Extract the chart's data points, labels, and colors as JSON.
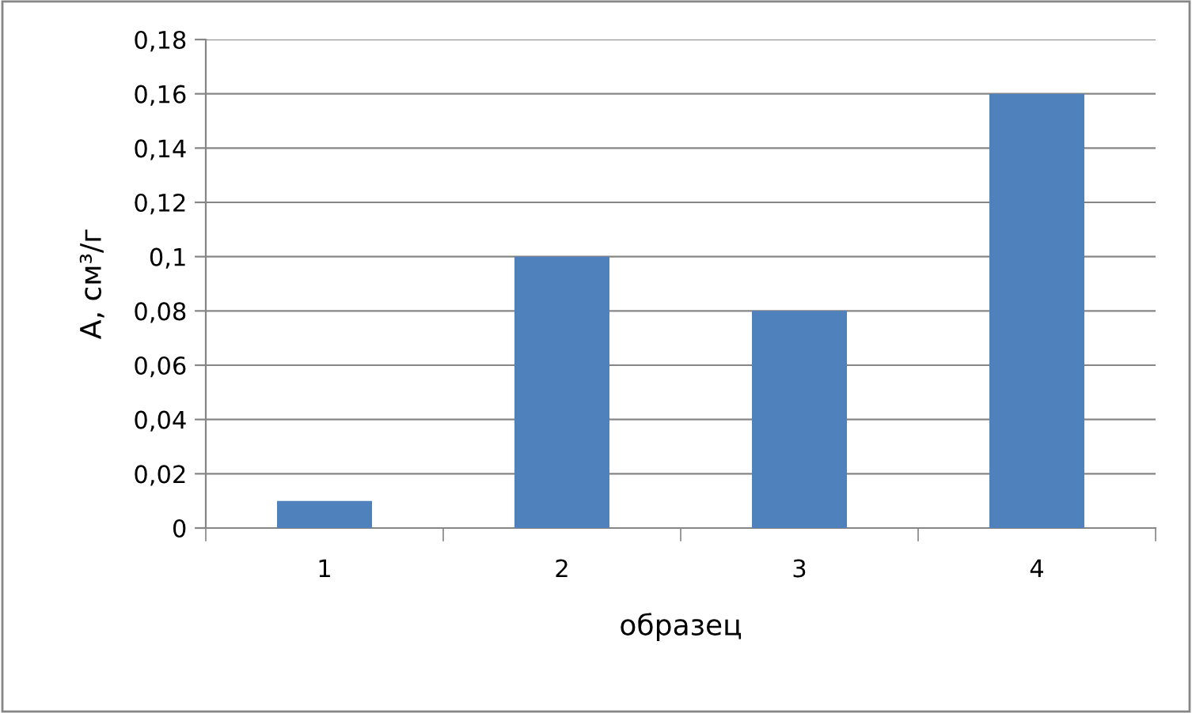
{
  "chart_data": {
    "type": "bar",
    "xlabel": "образец",
    "ylabel": "А, см³/г",
    "categories": [
      "1",
      "2",
      "3",
      "4"
    ],
    "values": [
      0.01,
      0.1,
      0.08,
      0.16
    ],
    "color": "#4f81bd",
    "ylim": [
      0,
      0.18
    ],
    "yticks": [
      {
        "value": 0,
        "label": "0"
      },
      {
        "value": 0.02,
        "label": "0,02"
      },
      {
        "value": 0.04,
        "label": "0,04"
      },
      {
        "value": 0.06,
        "label": "0,06"
      },
      {
        "value": 0.08,
        "label": "0,08"
      },
      {
        "value": 0.1,
        "label": "0,1"
      },
      {
        "value": 0.12,
        "label": "0,12"
      },
      {
        "value": 0.14,
        "label": "0,14"
      },
      {
        "value": 0.16,
        "label": "0,16"
      },
      {
        "value": 0.18,
        "label": "0,18"
      }
    ],
    "grid": "y",
    "legend": false
  }
}
